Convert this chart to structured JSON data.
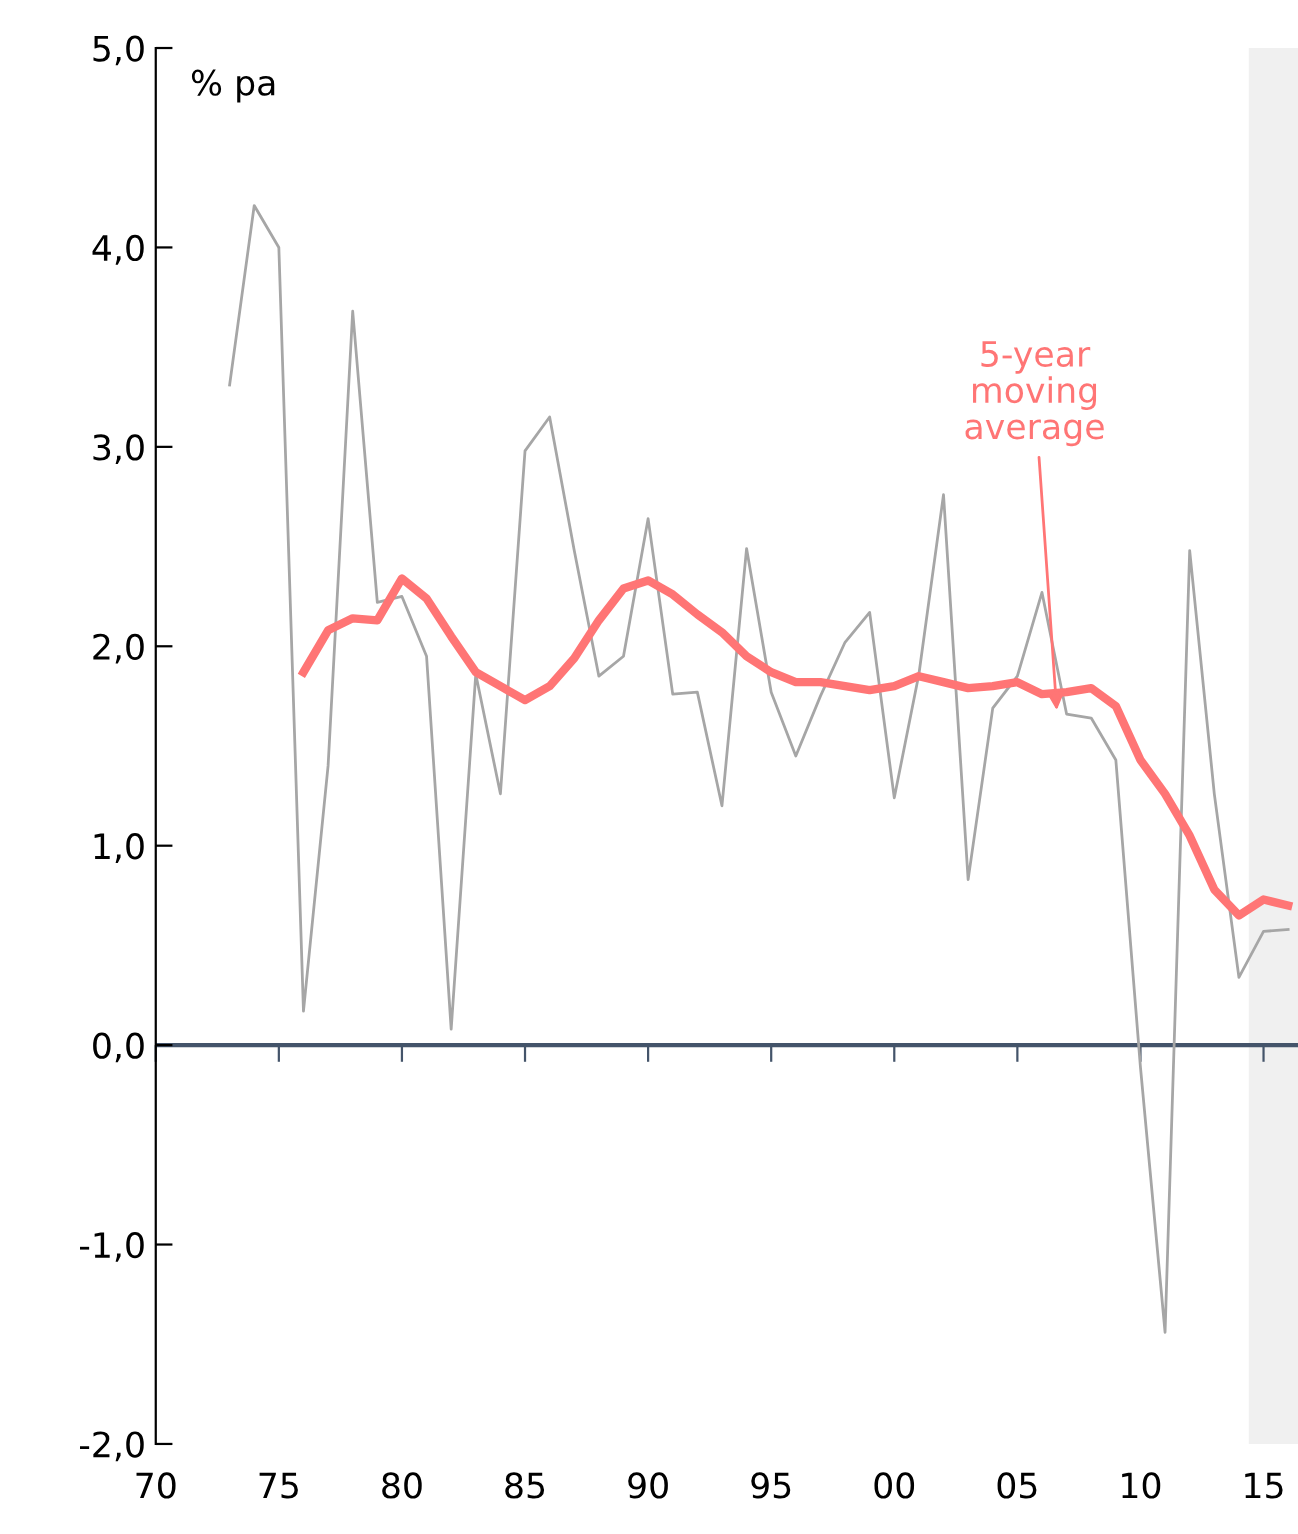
{
  "chart_data": {
    "type": "line",
    "ylabel": "% pa",
    "series": [
      {
        "color": "#a6a6a6",
        "x": [
          1973,
          1974,
          1975,
          1976,
          1977,
          1978,
          1979,
          1980,
          1981,
          1982,
          1983,
          1984,
          1985,
          1986,
          1987,
          1988,
          1989,
          1990,
          1991,
          1992,
          1993,
          1994,
          1995,
          1996,
          1997,
          1998,
          1999,
          2000,
          2001,
          2002,
          2003,
          2004,
          2005,
          2006,
          2007,
          2008,
          2009,
          2010,
          2011,
          2012,
          2013,
          2014,
          2015,
          2016
        ],
        "values": [
          3.31,
          4.21,
          4.0,
          0.17,
          1.4,
          3.68,
          2.22,
          2.25,
          1.95,
          0.08,
          1.86,
          1.26,
          2.98,
          3.15,
          2.48,
          1.85,
          1.95,
          2.64,
          1.76,
          1.77,
          1.2,
          2.49,
          1.77,
          1.45,
          1.75,
          2.02,
          2.17,
          1.24,
          1.86,
          2.76,
          0.83,
          1.69,
          1.85,
          2.27,
          1.66,
          1.64,
          1.43,
          -0.11,
          -1.44,
          2.48,
          1.26,
          0.34,
          0.57,
          0.58
        ]
      },
      {
        "color": "#ff7575",
        "x": [
          1976,
          1977,
          1978,
          1979,
          1980,
          1981,
          1982,
          1983,
          1984,
          1985,
          1986,
          1987,
          1988,
          1989,
          1990,
          1991,
          1992,
          1993,
          1994,
          1995,
          1996,
          1997,
          1998,
          1999,
          2000,
          2001,
          2002,
          2003,
          2004,
          2005,
          2006,
          2007,
          2008,
          2009,
          2010,
          2011,
          2012,
          2013,
          2014,
          2015,
          2016
        ],
        "values": [
          1.87,
          2.08,
          2.14,
          2.13,
          2.34,
          2.24,
          2.05,
          1.87,
          1.8,
          1.73,
          1.8,
          1.94,
          2.13,
          2.29,
          2.33,
          2.26,
          2.16,
          2.07,
          1.95,
          1.87,
          1.82,
          1.82,
          1.8,
          1.78,
          1.8,
          1.85,
          1.82,
          1.79,
          1.8,
          1.82,
          1.76,
          1.77,
          1.79,
          1.7,
          1.43,
          1.26,
          1.05,
          0.78,
          0.65,
          0.73,
          0.7
        ]
      }
    ],
    "annotations": [
      {
        "text": "5-year\nmoving\naverage",
        "x": 2006.6,
        "y": 1.68
      }
    ],
    "xlim": [
      1970,
      2016.4
    ],
    "xticks": [
      {
        "value": 1970,
        "label": "70"
      },
      {
        "value": 1975,
        "label": "75"
      },
      {
        "value": 1980,
        "label": "80"
      },
      {
        "value": 1985,
        "label": "85"
      },
      {
        "value": 1990,
        "label": "90"
      },
      {
        "value": 1995,
        "label": "95"
      },
      {
        "value": 2000,
        "label": "00"
      },
      {
        "value": 2005,
        "label": "05"
      },
      {
        "value": 2010,
        "label": "10"
      },
      {
        "value": 2015,
        "label": "15"
      }
    ],
    "ylim": [
      -2,
      5
    ],
    "yticks": [
      {
        "value": -2,
        "label": "-2,0"
      },
      {
        "value": -1,
        "label": "-1,0"
      },
      {
        "value": 0,
        "label": "0,0"
      },
      {
        "value": 1,
        "label": "1,0"
      },
      {
        "value": 2,
        "label": "2,0"
      },
      {
        "value": 3,
        "label": "3,0"
      },
      {
        "value": 4,
        "label": "4,0"
      },
      {
        "value": 5,
        "label": "5,0"
      }
    ],
    "bands": [
      {
        "axis": "x",
        "from": 2014.4,
        "to": 2016.4,
        "color": "#f0f0f0"
      }
    ],
    "ref_lines": [
      {
        "axis": "y",
        "value": 0,
        "color": "#44546a"
      }
    ],
    "legend": false,
    "marker": "none",
    "line_style": "solid"
  }
}
